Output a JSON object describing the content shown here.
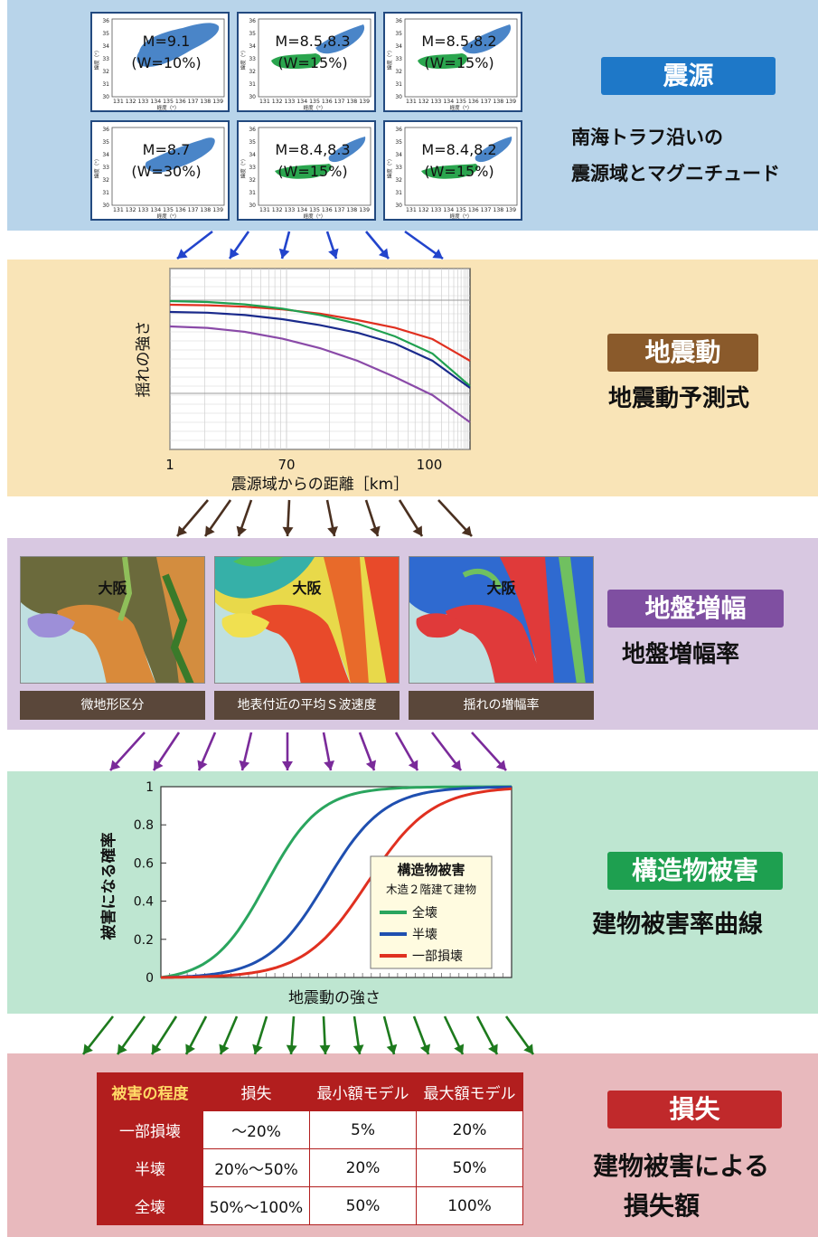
{
  "sections": {
    "source": {
      "tag": "震源",
      "desc1": "南海トラフ沿いの",
      "desc2": "震源域とマグニチュード",
      "color": "#1e78c8"
    },
    "motion": {
      "tag": "地震動",
      "desc": "地震動予測式",
      "color": "#8a5a2b"
    },
    "amplification": {
      "tag": "地盤増幅",
      "desc": "地盤増幅率",
      "color": "#7f4fa1"
    },
    "damage": {
      "tag": "構造物被害",
      "desc": "建物被害率曲線",
      "color": "#1ea050"
    },
    "loss": {
      "tag": "損失",
      "desc1": "建物被害による",
      "desc2": "損失額",
      "color": "#c0292b"
    }
  },
  "source_maps": [
    {
      "m": "M=9.1",
      "w": "(W=10%)"
    },
    {
      "m": "M=8.5,8.3",
      "w": "(W=15%)"
    },
    {
      "m": "M=8.5,8.2",
      "w": "(W=15%)"
    },
    {
      "m": "M=8.7",
      "w": "(W=30%)"
    },
    {
      "m": "M=8.4,8.3",
      "w": "(W=15%)"
    },
    {
      "m": "M=8.4,8.2",
      "w": "(W=15%)"
    }
  ],
  "map_axes": {
    "xticks": "131 132 133 134 135 136 137 138 139",
    "yticks": [
      "36",
      "35",
      "34",
      "33",
      "32",
      "31",
      "30"
    ],
    "xlabel": "経度（°）",
    "ylabel": "緯度（°）"
  },
  "chart_data": [
    {
      "type": "line",
      "title": "",
      "xlabel": "震源域からの距離［km］",
      "ylabel": "揺れの強さ",
      "xticks": [
        "1",
        "70",
        "100"
      ],
      "series": [
        {
          "color": "#e03020",
          "values": [
            0.8,
            0.797,
            0.789,
            0.774,
            0.751,
            0.715,
            0.673,
            0.61,
            0.49
          ]
        },
        {
          "color": "#20a050",
          "values": [
            0.82,
            0.815,
            0.802,
            0.778,
            0.743,
            0.695,
            0.625,
            0.53,
            0.35
          ]
        },
        {
          "color": "#1a2a8c",
          "values": [
            0.76,
            0.756,
            0.743,
            0.72,
            0.687,
            0.645,
            0.585,
            0.49,
            0.34
          ]
        },
        {
          "color": "#8a4aa8",
          "values": [
            0.68,
            0.672,
            0.65,
            0.612,
            0.56,
            0.49,
            0.4,
            0.3,
            0.15
          ]
        }
      ]
    },
    {
      "type": "line",
      "title": "",
      "xlabel": "地震動の強さ",
      "ylabel": "被害になる確率",
      "ylim": [
        0,
        1
      ],
      "yticks": [
        "0",
        "0.2",
        "0.4",
        "0.6",
        "0.8",
        "1"
      ],
      "legend_title": "構造物被害",
      "legend_subtitle": "木造２階建て建物",
      "legend_position": "lower-right",
      "series": [
        {
          "name": "全壊",
          "color": "#2aa55e",
          "midpoint": 0.3,
          "steep": 13
        },
        {
          "name": "半壊",
          "color": "#1f4fb0",
          "midpoint": 0.47,
          "steep": 12
        },
        {
          "name": "一部損壊",
          "color": "#e03020",
          "midpoint": 0.59,
          "steep": 11
        }
      ]
    }
  ],
  "ground_panels": [
    {
      "city": "大阪",
      "label": "微地形区分"
    },
    {
      "city": "大阪",
      "label": "地表付近の平均Ｓ波速度"
    },
    {
      "city": "大阪",
      "label": "揺れの増幅率"
    }
  ],
  "loss_table": {
    "headers": [
      "被害の程度",
      "損失",
      "最小額モデル",
      "最大額モデル"
    ],
    "rows": [
      [
        "一部損壊",
        "～20%",
        "5%",
        "20%"
      ],
      [
        "半壊",
        "20%～50%",
        "20%",
        "50%"
      ],
      [
        "全壊",
        "50%～100%",
        "50%",
        "100%"
      ]
    ]
  },
  "arrow_colors": {
    "blue": "#2244cc",
    "brown": "#4a3020",
    "purple": "#7a2a9a",
    "green": "#1d7a1d"
  }
}
